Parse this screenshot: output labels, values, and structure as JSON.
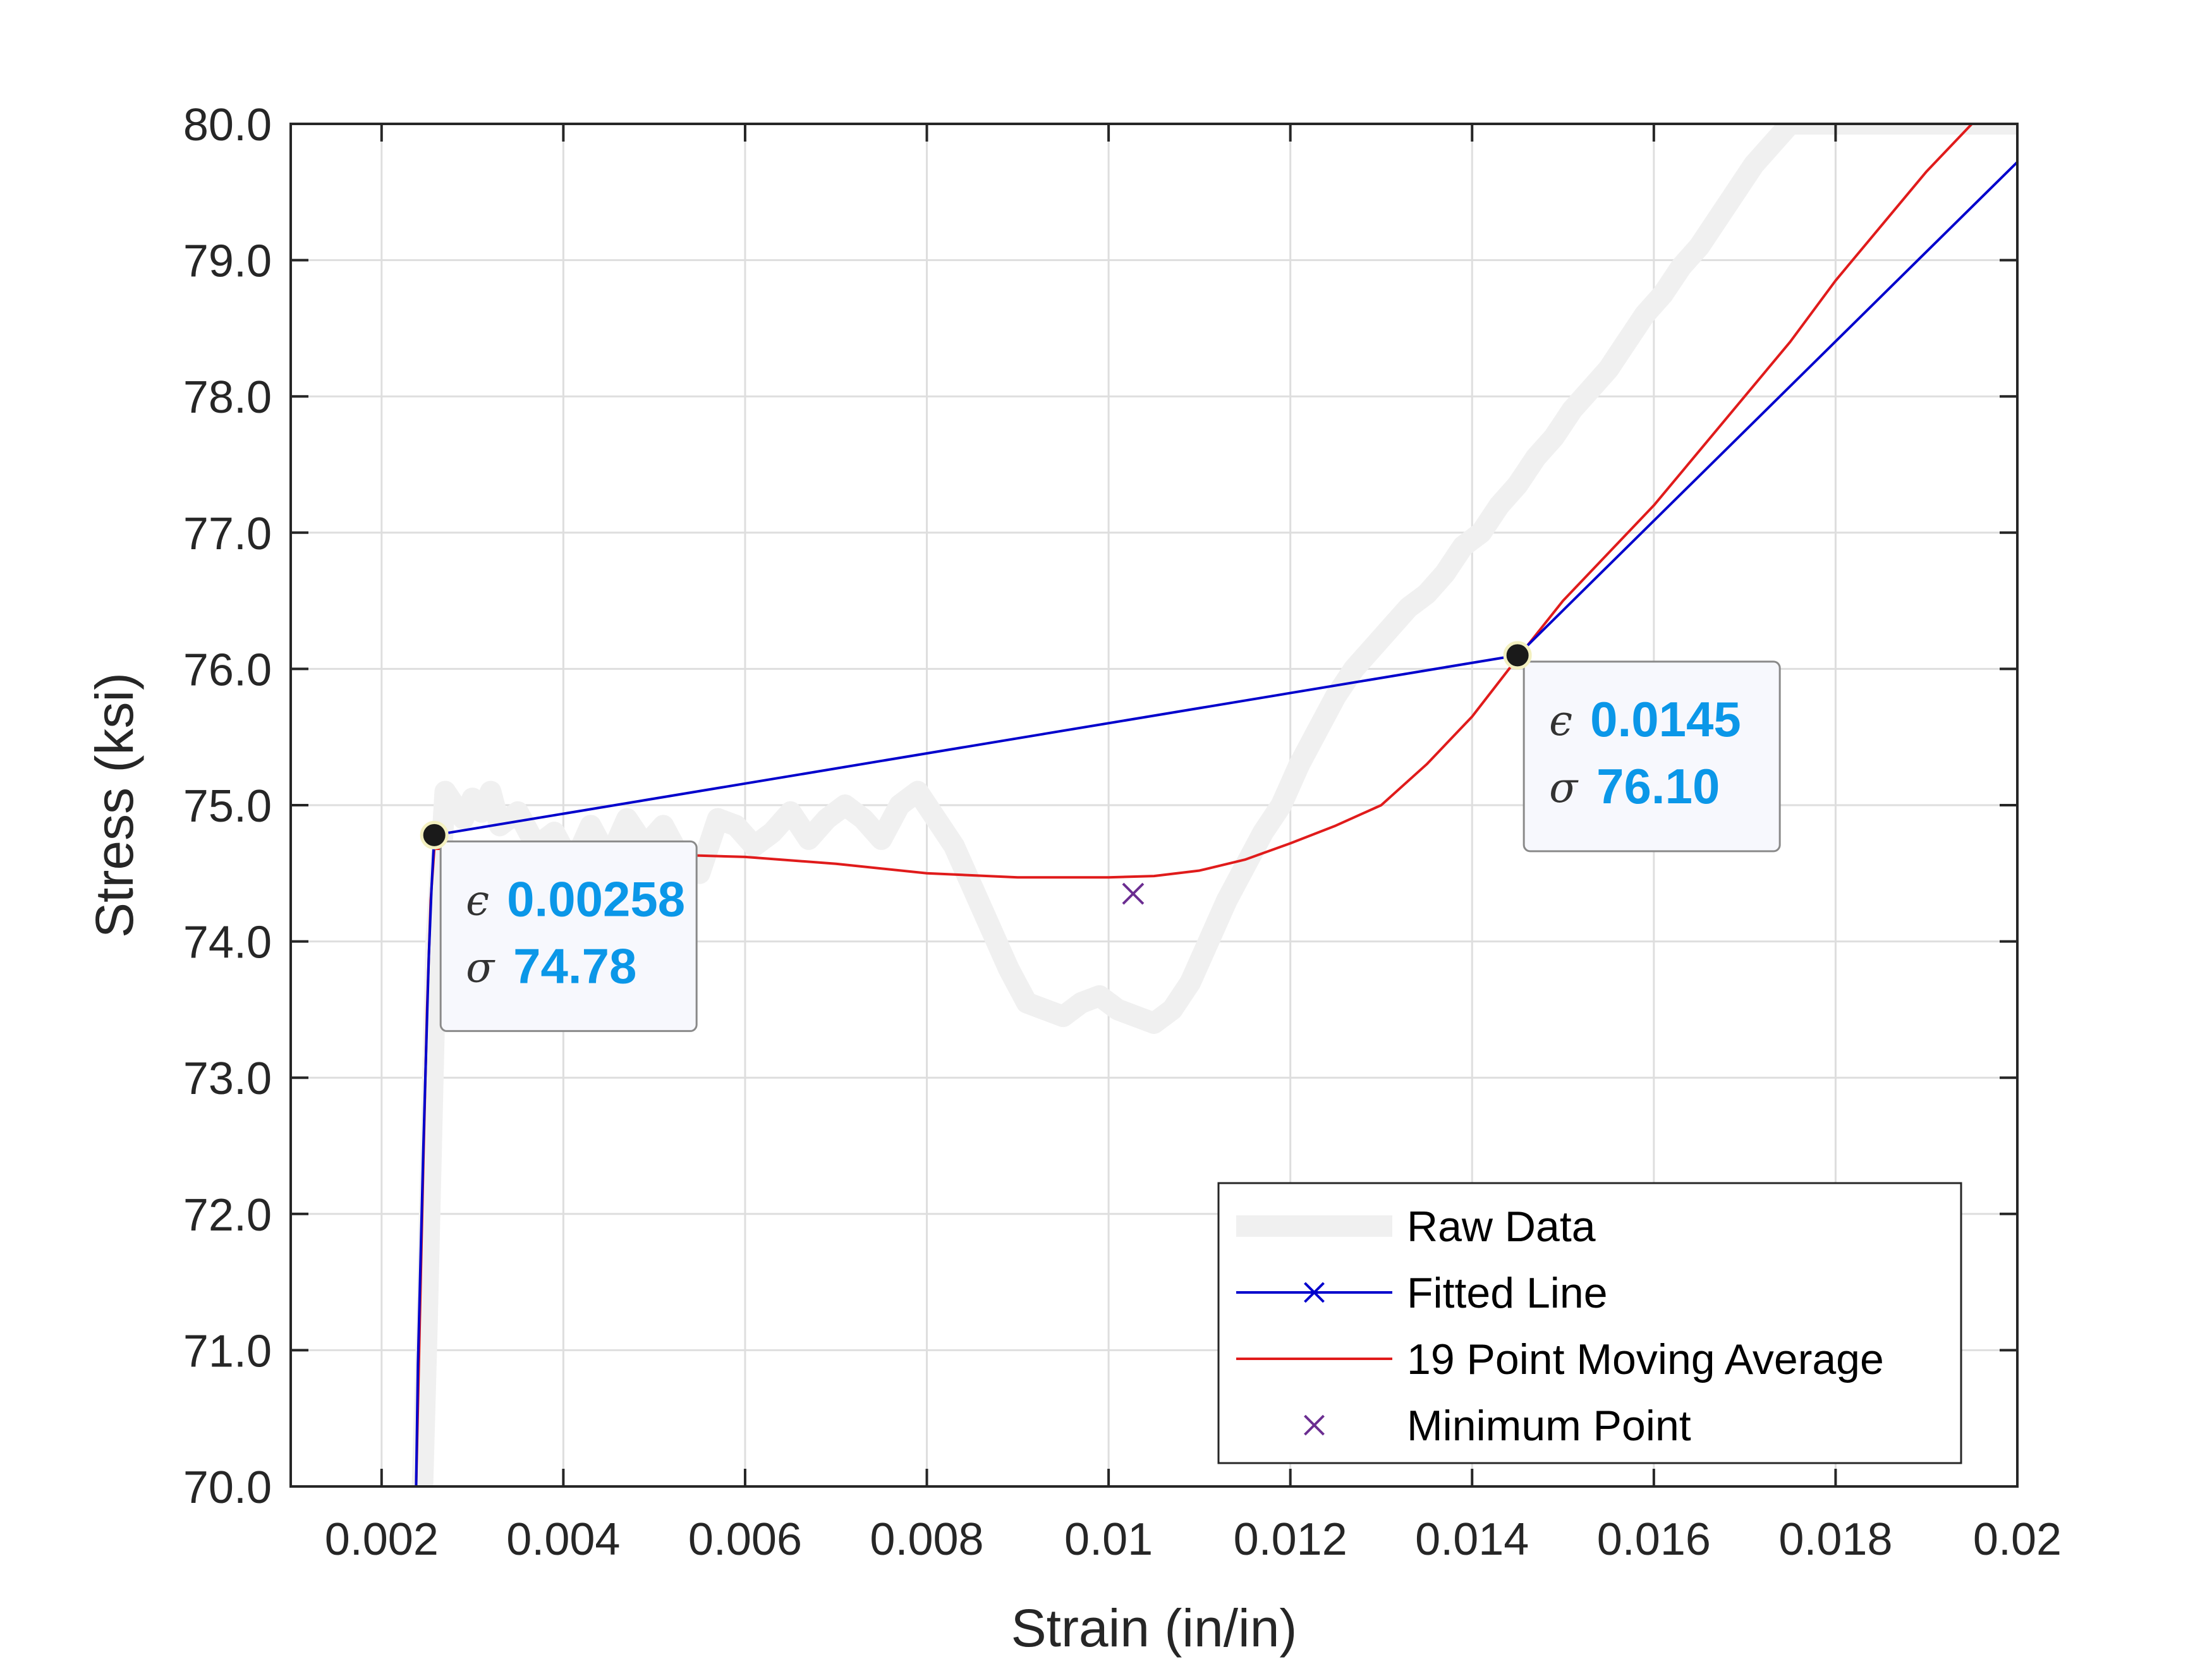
{
  "chart_data": {
    "type": "line",
    "xlabel": "Strain (in/in)",
    "ylabel": "Stress (ksi)",
    "xlim": [
      0.001,
      0.02
    ],
    "ylim": [
      70.0,
      80.0
    ],
    "grid": true,
    "xticks": [
      0.002,
      0.004,
      0.006,
      0.008,
      0.01,
      0.012,
      0.014,
      0.016,
      0.018,
      0.02
    ],
    "xtick_labels": [
      "0.002",
      "0.004",
      "0.006",
      "0.008",
      "0.01",
      "0.012",
      "0.014",
      "0.016",
      "0.018",
      "0.02"
    ],
    "yticks": [
      70,
      71,
      72,
      73,
      74,
      75,
      76,
      77,
      78,
      79,
      80
    ],
    "ytick_labels": [
      "70.0",
      "71.0",
      "72.0",
      "73.0",
      "74.0",
      "75.0",
      "76.0",
      "77.0",
      "78.0",
      "79.0",
      "80.0"
    ],
    "legend": {
      "placement": "bottom-right",
      "entries": [
        "Raw Data",
        "Fitted Line",
        "19 Point Moving Average",
        "Minimum Point"
      ]
    },
    "series": [
      {
        "name": "Raw Data",
        "color": "#f0f0f0",
        "x": [
          0.00245,
          0.0025,
          0.00255,
          0.0026,
          0.0027,
          0.0028,
          0.0029,
          0.003,
          0.0031,
          0.0032,
          0.0033,
          0.0035,
          0.0037,
          0.0039,
          0.0041,
          0.0043,
          0.0045,
          0.0047,
          0.0049,
          0.0051,
          0.0053,
          0.0055,
          0.0057,
          0.0059,
          0.0061,
          0.0063,
          0.0065,
          0.0067,
          0.0069,
          0.0071,
          0.0073,
          0.0075,
          0.0077,
          0.0079,
          0.0081,
          0.0083,
          0.0085,
          0.0087,
          0.0089,
          0.0091,
          0.0093,
          0.0095,
          0.0097,
          0.0099,
          0.0101,
          0.0103,
          0.0105,
          0.0107,
          0.0109,
          0.0111,
          0.0113,
          0.0115,
          0.0117,
          0.0119,
          0.0121,
          0.0123,
          0.0125,
          0.0127,
          0.0129,
          0.0131,
          0.0133,
          0.0135,
          0.0137,
          0.0139,
          0.0141,
          0.0143,
          0.0145,
          0.0147,
          0.0149,
          0.0151,
          0.0153,
          0.0155,
          0.0157,
          0.0159,
          0.0161,
          0.0163,
          0.0165,
          0.0167,
          0.0169,
          0.0171,
          0.0173,
          0.0175,
          0.0177,
          0.0179,
          0.0181,
          0.0183,
          0.0185,
          0.0187,
          0.0189,
          0.0191,
          0.0193,
          0.0195,
          0.0197,
          0.0199,
          0.02
        ],
        "values": [
          70.0,
          71.2,
          72.6,
          74.0,
          75.1,
          75.0,
          74.9,
          75.05,
          74.95,
          75.1,
          74.85,
          74.95,
          74.7,
          74.8,
          74.55,
          74.85,
          74.6,
          74.9,
          74.7,
          74.85,
          74.6,
          74.5,
          74.9,
          74.85,
          74.7,
          74.8,
          74.95,
          74.75,
          74.9,
          75.0,
          74.9,
          74.75,
          75.0,
          75.1,
          74.9,
          74.7,
          74.4,
          74.1,
          73.8,
          73.55,
          73.5,
          73.45,
          73.55,
          73.6,
          73.5,
          73.45,
          73.4,
          73.5,
          73.7,
          74.0,
          74.3,
          74.55,
          74.8,
          75.0,
          75.3,
          75.55,
          75.8,
          76.0,
          76.15,
          76.3,
          76.45,
          76.55,
          76.7,
          76.9,
          77.0,
          77.2,
          77.35,
          77.55,
          77.7,
          77.9,
          78.05,
          78.2,
          78.4,
          78.6,
          78.75,
          78.95,
          79.1,
          79.3,
          79.5,
          79.7,
          79.85,
          80.0,
          80.0,
          80.0,
          80.0,
          80.0,
          80.0,
          80.0,
          80.0,
          80.0,
          80.0,
          80.0,
          80.0,
          80.0,
          80.0
        ]
      },
      {
        "name": "Fitted Line",
        "color": "#0000cc",
        "marker": "x",
        "x": [
          0.00238,
          0.0024,
          0.00243,
          0.00246,
          0.00249,
          0.00252,
          0.00255,
          0.00258,
          0.0145,
          0.02
        ],
        "values": [
          70.0,
          70.9,
          71.7,
          72.5,
          73.2,
          73.9,
          74.4,
          74.78,
          76.1,
          79.72
        ]
      },
      {
        "name": "19 Point Moving Average",
        "color": "#e01b1b",
        "x": [
          0.00238,
          0.00242,
          0.00246,
          0.0025,
          0.00254,
          0.00258,
          0.003,
          0.004,
          0.005,
          0.006,
          0.007,
          0.008,
          0.009,
          0.01,
          0.0105,
          0.011,
          0.0115,
          0.012,
          0.0125,
          0.013,
          0.0135,
          0.014,
          0.0145,
          0.015,
          0.0155,
          0.016,
          0.0165,
          0.017,
          0.0175,
          0.018,
          0.0185,
          0.019,
          0.0195
        ],
        "values": [
          70.0,
          71.2,
          72.4,
          73.5,
          74.3,
          74.68,
          74.68,
          74.66,
          74.64,
          74.62,
          74.57,
          74.5,
          74.47,
          74.47,
          74.48,
          74.52,
          74.6,
          74.72,
          74.85,
          75.0,
          75.3,
          75.65,
          76.08,
          76.5,
          76.85,
          77.2,
          77.6,
          78.0,
          78.4,
          78.85,
          79.25,
          79.65,
          80.0
        ]
      },
      {
        "name": "Minimum Point",
        "color": "#6b2d91",
        "marker": "x",
        "x": [
          0.01027
        ],
        "values": [
          74.35
        ]
      }
    ],
    "annotations": [
      {
        "x": 0.00258,
        "y": 74.78,
        "strain_symbol": "ϵ",
        "strain_text": "0.00258",
        "stress_symbol": "σ",
        "stress_text": "74.78",
        "placement": "right-below"
      },
      {
        "x": 0.0145,
        "y": 76.1,
        "strain_symbol": "ϵ",
        "strain_text": "0.0145",
        "stress_symbol": "σ",
        "stress_text": "76.10",
        "placement": "right-below"
      }
    ]
  }
}
